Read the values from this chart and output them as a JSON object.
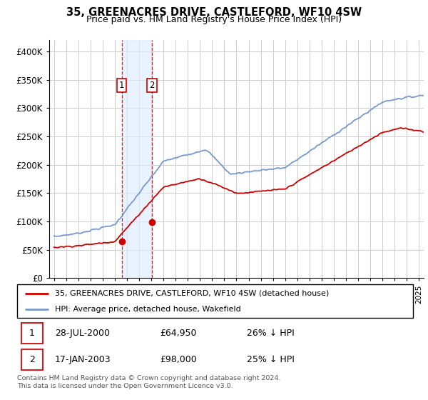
{
  "title": "35, GREENACRES DRIVE, CASTLEFORD, WF10 4SW",
  "subtitle": "Price paid vs. HM Land Registry's House Price Index (HPI)",
  "ylim": [
    0,
    420000
  ],
  "yticks": [
    0,
    50000,
    100000,
    150000,
    200000,
    250000,
    300000,
    350000,
    400000
  ],
  "xlim_left": 1994.6,
  "xlim_right": 2025.4,
  "sale1_date": 2000.57,
  "sale1_price": 64950,
  "sale2_date": 2003.04,
  "sale2_price": 98000,
  "legend_line1": "35, GREENACRES DRIVE, CASTLEFORD, WF10 4SW (detached house)",
  "legend_line2": "HPI: Average price, detached house, Wakefield",
  "footer": "Contains HM Land Registry data © Crown copyright and database right 2024.\nThis data is licensed under the Open Government Licence v3.0.",
  "red_color": "#cc0000",
  "blue_color": "#7799cc",
  "grid_color": "#cccccc",
  "shade_color": "#ddeeff",
  "label_box_color": "#cc0000"
}
